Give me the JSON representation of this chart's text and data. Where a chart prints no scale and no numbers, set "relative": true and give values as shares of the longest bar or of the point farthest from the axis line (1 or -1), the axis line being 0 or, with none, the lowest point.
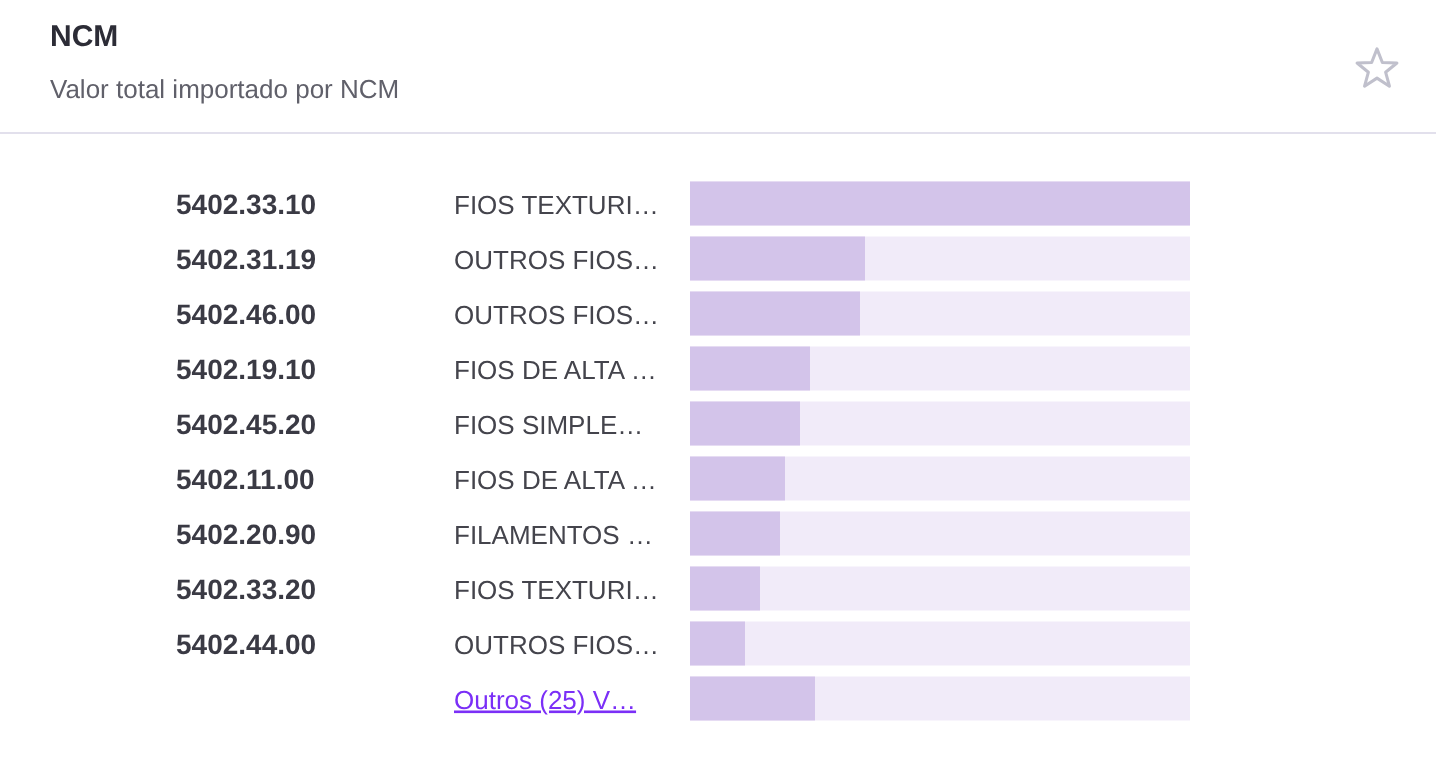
{
  "chart_data": {
    "type": "bar",
    "orientation": "horizontal",
    "relative": true,
    "title": "NCM",
    "subtitle": "Valor total importado por NCM",
    "categories": [
      "5402.33.10",
      "5402.31.19",
      "5402.46.00",
      "5402.19.10",
      "5402.45.20",
      "5402.11.00",
      "5402.20.90",
      "5402.33.20",
      "5402.44.00",
      null
    ],
    "y2_categories": [
      "FIOS TEXTURI…",
      "OUTROS FIOS…",
      "OUTROS FIOS…",
      "FIOS DE ALTA …",
      "FIOS SIMPLE…",
      "FIOS DE ALTA …",
      "FILAMENTOS …",
      "FIOS TEXTURI…",
      "OUTROS FIOS…",
      "Outros (25) V…"
    ],
    "values": [
      1,
      0.35,
      0.34,
      0.24,
      0.22,
      0.19,
      0.18,
      0.14,
      0.11,
      0.25
    ],
    "color": "#d3c4ea"
  }
}
